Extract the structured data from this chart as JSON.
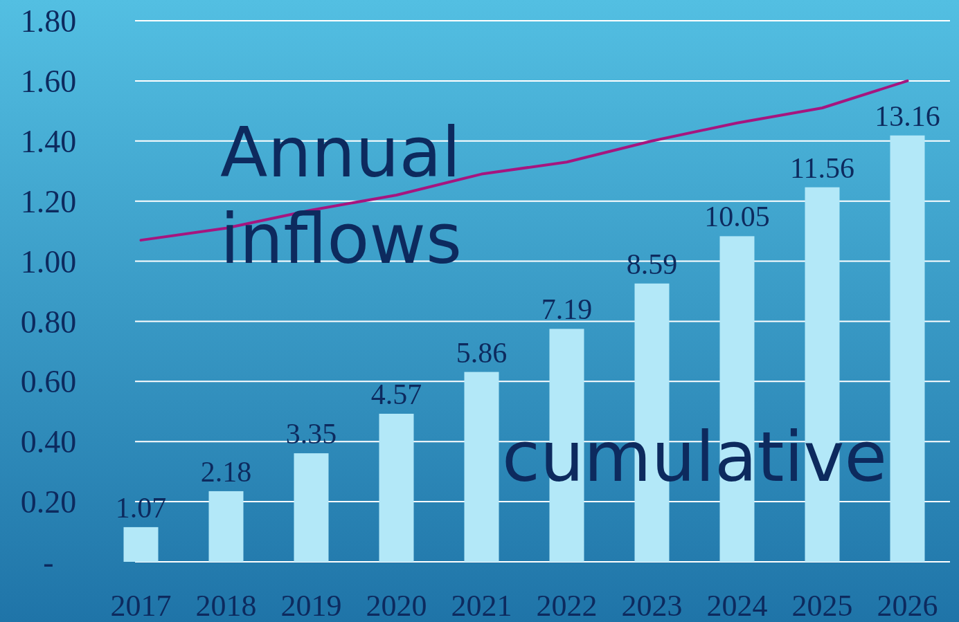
{
  "chart_data": {
    "type": "bar",
    "categories": [
      "2017",
      "2018",
      "2019",
      "2020",
      "2021",
      "2022",
      "2023",
      "2024",
      "2025",
      "2026"
    ],
    "series": [
      {
        "name": "cumulative",
        "axis": "y2",
        "color": "#b3e8f8",
        "values": [
          1.07,
          2.18,
          3.35,
          4.57,
          5.86,
          7.19,
          8.59,
          10.05,
          11.56,
          13.16
        ],
        "value_labels": [
          "1.07",
          "2.18",
          "3.35",
          "4.57",
          "5.86",
          "7.19",
          "8.59",
          "10.05",
          "11.56",
          "13.16"
        ]
      },
      {
        "name": "Annual inflows",
        "type": "line",
        "color": "#a6157f",
        "values": [
          1.07,
          1.11,
          1.17,
          1.22,
          1.29,
          1.33,
          1.4,
          1.46,
          1.51,
          1.6
        ]
      }
    ],
    "ylim": [
      0,
      1.8
    ],
    "yticks": [
      {
        "value": 0,
        "label": "-"
      },
      {
        "value": 0.2,
        "label": "0.20"
      },
      {
        "value": 0.4,
        "label": "0.40"
      },
      {
        "value": 0.6,
        "label": "0.60"
      },
      {
        "value": 0.8,
        "label": "0.80"
      },
      {
        "value": 1.0,
        "label": "1.00"
      },
      {
        "value": 1.2,
        "label": "1.20"
      },
      {
        "value": 1.4,
        "label": "1.40"
      },
      {
        "value": 1.6,
        "label": "1.60"
      },
      {
        "value": 1.8,
        "label": "1.80"
      }
    ],
    "y2lim": [
      0,
      16.7
    ],
    "grid": "y",
    "line_style": "solid",
    "marker": "none"
  }
}
